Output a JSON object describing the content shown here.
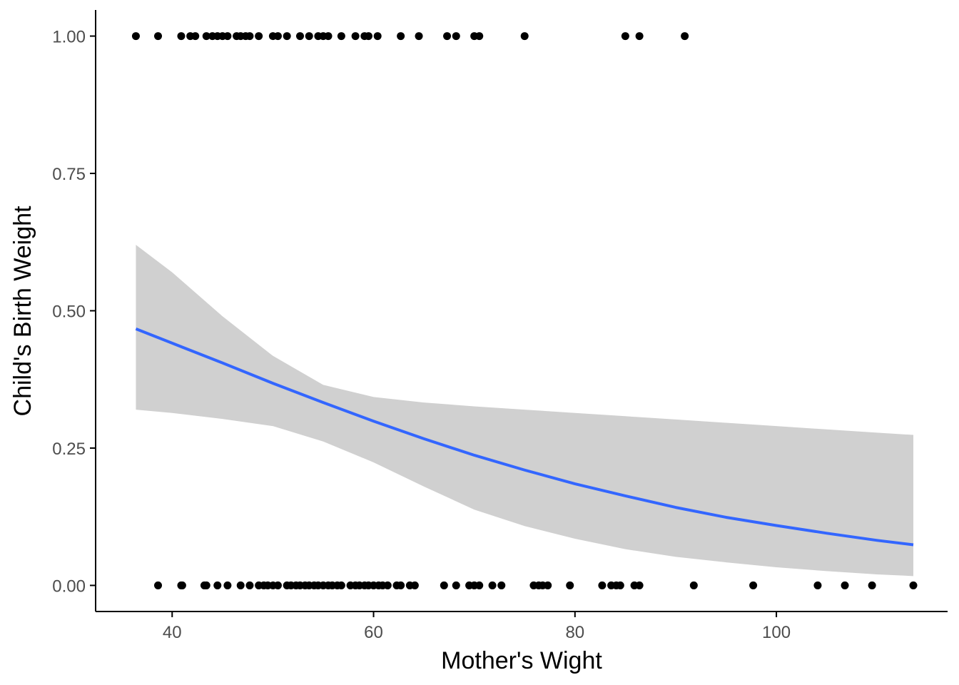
{
  "chart_data": {
    "type": "scatter",
    "title": "",
    "xlabel": "Mother's Wight",
    "ylabel": "Child's Birth Weight",
    "xlim": [
      32.4,
      117.0
    ],
    "ylim": [
      -0.0475,
      1.0475
    ],
    "xticks": [
      40,
      60,
      80,
      100
    ],
    "xtick_labels": [
      "40",
      "60",
      "80",
      "100"
    ],
    "yticks": [
      0,
      0.25,
      0.5,
      0.75,
      1.0
    ],
    "ytick_labels": [
      "0.00",
      "0.25",
      "0.50",
      "0.75",
      "1.00"
    ],
    "grid": false,
    "legend": "none",
    "colors": {
      "points": "#000000",
      "fit_line": "#3366ff",
      "ribbon": "#d0d0d0",
      "axis": "#000000",
      "tick_text": "#4d4d4d"
    },
    "series": [
      {
        "kind": "points",
        "y": 1,
        "x": [
          36.4,
          38.6,
          40.9,
          41.8,
          42.3,
          43.4,
          44.0,
          44.5,
          45.0,
          45.5,
          46.4,
          46.8,
          47.3,
          47.7,
          48.6,
          50.0,
          50.5,
          51.4,
          52.7,
          53.6,
          54.5,
          55.0,
          55.5,
          56.8,
          58.2,
          59.1,
          59.5,
          60.4,
          62.7,
          64.5,
          67.3,
          68.2,
          70.0,
          70.5,
          75.0,
          85.0,
          86.4,
          90.9
        ]
      },
      {
        "kind": "points",
        "y": 0,
        "x": [
          38.6,
          40.9,
          41.0,
          43.2,
          43.4,
          44.5,
          45.5,
          46.8,
          47.7,
          48.6,
          49.1,
          49.5,
          50.0,
          50.5,
          51.4,
          51.8,
          52.3,
          52.7,
          53.2,
          53.6,
          54.1,
          54.5,
          55.0,
          55.5,
          55.9,
          56.4,
          56.8,
          57.7,
          58.2,
          58.6,
          59.1,
          59.5,
          60.0,
          60.5,
          60.9,
          61.4,
          62.3,
          62.7,
          63.6,
          64.1,
          67.0,
          68.2,
          69.5,
          70.0,
          70.5,
          71.8,
          72.7,
          75.9,
          76.4,
          76.8,
          77.3,
          79.5,
          82.7,
          83.6,
          84.1,
          84.5,
          85.9,
          86.4,
          91.8,
          97.7,
          104.1,
          106.8,
          109.5,
          113.6
        ]
      },
      {
        "kind": "logistic_fit",
        "x": [
          36.4,
          40,
          45,
          50,
          55,
          60,
          65,
          70,
          75,
          80,
          85,
          90,
          95,
          100,
          105,
          110,
          113.6
        ],
        "y": [
          0.467,
          0.441,
          0.405,
          0.368,
          0.333,
          0.299,
          0.267,
          0.237,
          0.21,
          0.185,
          0.163,
          0.142,
          0.124,
          0.109,
          0.095,
          0.082,
          0.074
        ],
        "lower": [
          0.32,
          0.314,
          0.303,
          0.29,
          0.262,
          0.224,
          0.18,
          0.138,
          0.108,
          0.085,
          0.066,
          0.052,
          0.042,
          0.033,
          0.026,
          0.02,
          0.017
        ],
        "upper": [
          0.62,
          0.57,
          0.49,
          0.418,
          0.365,
          0.343,
          0.333,
          0.326,
          0.32,
          0.314,
          0.308,
          0.302,
          0.296,
          0.29,
          0.284,
          0.278,
          0.274
        ]
      }
    ]
  }
}
